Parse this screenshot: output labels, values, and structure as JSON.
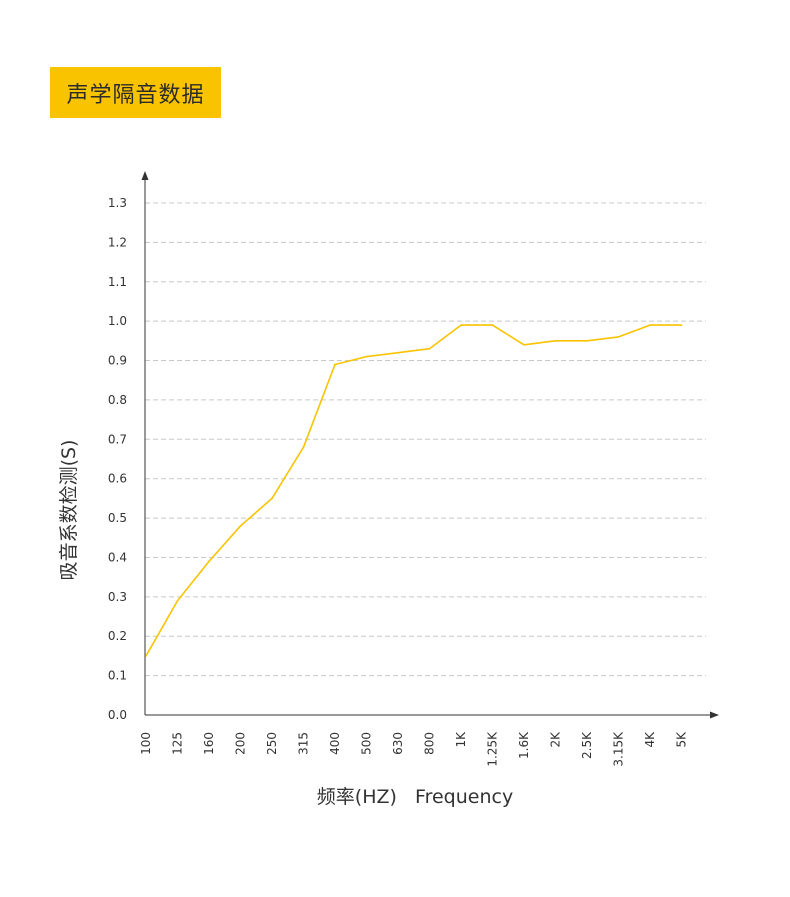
{
  "header": {
    "title": "声学隔音数据"
  },
  "colors": {
    "badge": "#f9c300",
    "line": "#f9c300",
    "grid": "#c8c8c8",
    "axis": "#333333"
  },
  "chart_data": {
    "type": "line",
    "title": "",
    "xlabel": "频率(HZ)   Frequency",
    "ylabel": "吸音系数检测(S)",
    "ylim": [
      0,
      1.3
    ],
    "grid": true,
    "categories": [
      "100",
      "125",
      "160",
      "200",
      "250",
      "315",
      "400",
      "500",
      "630",
      "800",
      "1K",
      "1.25K",
      "1.6K",
      "2K",
      "2.5K",
      "3.15K",
      "4K",
      "5K"
    ],
    "yticks": [
      "0.0",
      "0.1",
      "0.2",
      "0.3",
      "0.4",
      "0.5",
      "0.6",
      "0.7",
      "0.8",
      "0.9",
      "1.0",
      "1.1",
      "1.2",
      "1.3"
    ],
    "series": [
      {
        "values": [
          0.15,
          0.29,
          0.39,
          0.48,
          0.55,
          0.68,
          0.89,
          0.91,
          0.92,
          0.93,
          0.99,
          0.99,
          0.94,
          0.95,
          0.95,
          0.96,
          0.99,
          0.99
        ]
      }
    ]
  }
}
